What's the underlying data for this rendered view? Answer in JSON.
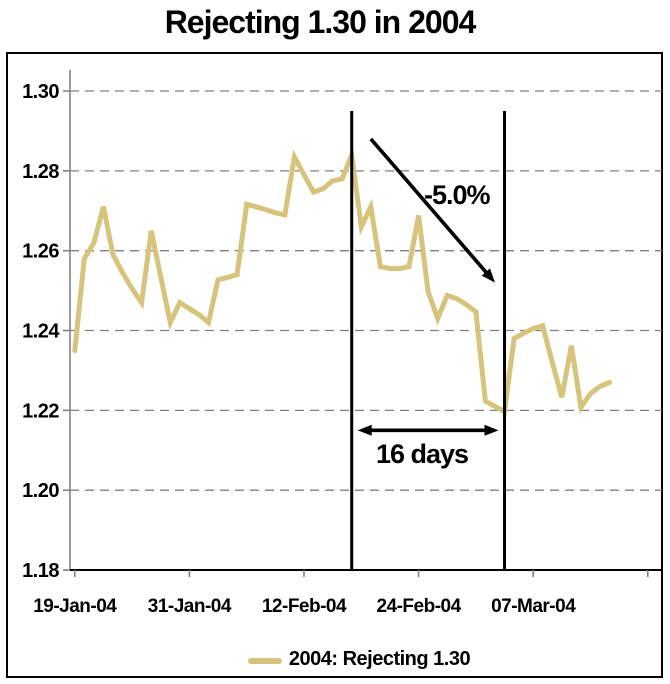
{
  "title": "Rejecting 1.30 in 2004",
  "legend": {
    "label": "2004: Rejecting 1.30",
    "swatch_color": "#d6c37c"
  },
  "annotations": {
    "percent_drop": "-5.0%",
    "duration": "16 days"
  },
  "colors": {
    "series": "#d6c37c",
    "gridline": "#808080",
    "axis_y": "#808080",
    "axis_x": "#000000",
    "event_line": "#000000",
    "text": "#000000",
    "background": "#ffffff"
  },
  "chart_data": {
    "type": "line",
    "title": "Rejecting 1.30 in 2004",
    "xlabel": "",
    "ylabel": "",
    "ylim": [
      1.18,
      1.3
    ],
    "y_tick_step": 0.02,
    "y_ticks": [
      "1.30",
      "1.28",
      "1.26",
      "1.24",
      "1.22",
      "1.20",
      "1.18"
    ],
    "x_tick_labels": [
      "19-Jan-04",
      "31-Jan-04",
      "12-Feb-04",
      "24-Feb-04",
      "07-Mar-04"
    ],
    "x_frequency": "daily",
    "x_days_between_ticks": 12,
    "grid": "horizontal-dashed",
    "legend_position": "bottom",
    "series": [
      {
        "name": "2004: Rejecting 1.30",
        "color": "#d6c37c",
        "first_point_date": "19-Jan-04",
        "values": [
          1.235,
          1.258,
          1.262,
          1.271,
          1.259,
          1.2545,
          1.2505,
          1.247,
          1.265,
          1.2535,
          1.242,
          1.247,
          1.2455,
          1.244,
          1.242,
          1.2527,
          1.2533,
          1.254,
          1.2716,
          1.271,
          1.2703,
          1.2695,
          1.269,
          1.2835,
          1.279,
          1.2747,
          1.2755,
          1.2775,
          1.278,
          1.284,
          1.266,
          1.271,
          1.256,
          1.2555,
          1.2555,
          1.256,
          1.2688,
          1.2497,
          1.243,
          1.2488,
          1.248,
          1.2465,
          1.2447,
          1.2223,
          1.221,
          1.2197,
          1.238,
          1.2393,
          1.2405,
          1.2412,
          1.232,
          1.2233,
          1.2362,
          1.2208,
          1.2242,
          1.226,
          1.227
        ]
      }
    ],
    "annotations": [
      {
        "type": "vline",
        "day_index": 29,
        "value_top": 1.295
      },
      {
        "type": "vline",
        "day_index": 45,
        "value_top": 1.295
      },
      {
        "type": "arrow",
        "label": "-5.0%",
        "from_day": 31,
        "from_value": 1.288,
        "to_day": 44,
        "to_value": 1.252
      },
      {
        "type": "double_arrow",
        "label": "16 days",
        "from_day": 29,
        "to_day": 45,
        "value": 1.215
      }
    ]
  }
}
